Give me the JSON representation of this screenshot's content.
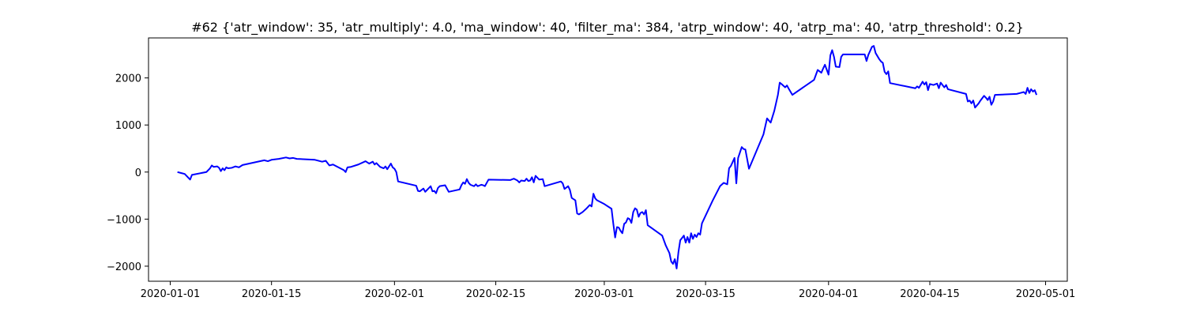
{
  "chart_data": {
    "type": "line",
    "title": "#62 {'atr_window': 35, 'atr_multiply': 4.0, 'ma_window': 40, 'filter_ma': 384, 'atrp_window': 40, 'atrp_ma': 40, 'atrp_threshold': 0.2}",
    "xlabel": "",
    "ylabel": "",
    "xlim": [
      "2019-12-29",
      "2020-05-04"
    ],
    "ylim": [
      -2320,
      2850
    ],
    "grid": false,
    "x_ticks": [
      "2020-01-01",
      "2020-01-15",
      "2020-02-01",
      "2020-02-15",
      "2020-03-01",
      "2020-03-15",
      "2020-04-01",
      "2020-04-15",
      "2020-05-01"
    ],
    "y_ticks": [
      -2000,
      -1000,
      0,
      1000,
      2000
    ],
    "series": [
      {
        "color": "#0000ff",
        "points": [
          [
            "2020-01-02",
            0
          ],
          [
            "2020-01-02 12:00",
            -20
          ],
          [
            "2020-01-03",
            -40
          ],
          [
            "2020-01-03 12:00",
            -120
          ],
          [
            "2020-01-03 18:00",
            -160
          ],
          [
            "2020-01-04",
            -60
          ],
          [
            "2020-01-06",
            0
          ],
          [
            "2020-01-06 12:00",
            80
          ],
          [
            "2020-01-06 18:00",
            140
          ],
          [
            "2020-01-07",
            110
          ],
          [
            "2020-01-07 12:00",
            120
          ],
          [
            "2020-01-07 18:00",
            90
          ],
          [
            "2020-01-08",
            20
          ],
          [
            "2020-01-08 06:00",
            80
          ],
          [
            "2020-01-08 12:00",
            40
          ],
          [
            "2020-01-08 18:00",
            100
          ],
          [
            "2020-01-09",
            80
          ],
          [
            "2020-01-09 12:00",
            90
          ],
          [
            "2020-01-10",
            120
          ],
          [
            "2020-01-10 12:00",
            100
          ],
          [
            "2020-01-11",
            150
          ],
          [
            "2020-01-14",
            250
          ],
          [
            "2020-01-14 12:00",
            230
          ],
          [
            "2020-01-15",
            260
          ],
          [
            "2020-01-16",
            280
          ],
          [
            "2020-01-17",
            310
          ],
          [
            "2020-01-17 12:00",
            290
          ],
          [
            "2020-01-18",
            300
          ],
          [
            "2020-01-18 12:00",
            280
          ],
          [
            "2020-01-21",
            260
          ],
          [
            "2020-01-22",
            220
          ],
          [
            "2020-01-22 12:00",
            240
          ],
          [
            "2020-01-23",
            140
          ],
          [
            "2020-01-23 12:00",
            160
          ],
          [
            "2020-01-24",
            120
          ],
          [
            "2020-01-24 12:00",
            80
          ],
          [
            "2020-01-25",
            40
          ],
          [
            "2020-01-25 06:00",
            0
          ],
          [
            "2020-01-25 12:00",
            100
          ],
          [
            "2020-01-26",
            110
          ],
          [
            "2020-01-27",
            160
          ],
          [
            "2020-01-28",
            230
          ],
          [
            "2020-01-28 12:00",
            180
          ],
          [
            "2020-01-29",
            220
          ],
          [
            "2020-01-29 06:00",
            160
          ],
          [
            "2020-01-29 12:00",
            190
          ],
          [
            "2020-01-30",
            110
          ],
          [
            "2020-01-30 12:00",
            80
          ],
          [
            "2020-01-30 18:00",
            120
          ],
          [
            "2020-01-31",
            60
          ],
          [
            "2020-01-31 12:00",
            180
          ],
          [
            "2020-01-31 18:00",
            100
          ],
          [
            "2020-02-01",
            70
          ],
          [
            "2020-02-01 06:00",
            0
          ],
          [
            "2020-02-01 12:00",
            -200
          ],
          [
            "2020-02-04",
            -290
          ],
          [
            "2020-02-04 06:00",
            -400
          ],
          [
            "2020-02-04 12:00",
            -410
          ],
          [
            "2020-02-05",
            -350
          ],
          [
            "2020-02-05 06:00",
            -420
          ],
          [
            "2020-02-05 12:00",
            -380
          ],
          [
            "2020-02-06",
            -300
          ],
          [
            "2020-02-06 06:00",
            -410
          ],
          [
            "2020-02-06 12:00",
            -400
          ],
          [
            "2020-02-06 18:00",
            -450
          ],
          [
            "2020-02-07",
            -340
          ],
          [
            "2020-02-07 06:00",
            -300
          ],
          [
            "2020-02-08",
            -280
          ],
          [
            "2020-02-08 12:00",
            -420
          ],
          [
            "2020-02-10",
            -370
          ],
          [
            "2020-02-10 06:00",
            -280
          ],
          [
            "2020-02-10 12:00",
            -220
          ],
          [
            "2020-02-10 18:00",
            -250
          ],
          [
            "2020-02-11",
            -150
          ],
          [
            "2020-02-11 06:00",
            -230
          ],
          [
            "2020-02-11 12:00",
            -270
          ],
          [
            "2020-02-12",
            -300
          ],
          [
            "2020-02-12 06:00",
            -260
          ],
          [
            "2020-02-12 12:00",
            -300
          ],
          [
            "2020-02-13",
            -270
          ],
          [
            "2020-02-13 06:00",
            -280
          ],
          [
            "2020-02-13 12:00",
            -300
          ],
          [
            "2020-02-14",
            -160
          ],
          [
            "2020-02-17",
            -170
          ],
          [
            "2020-02-17 12:00",
            -140
          ],
          [
            "2020-02-18",
            -180
          ],
          [
            "2020-02-18 06:00",
            -220
          ],
          [
            "2020-02-18 12:00",
            -180
          ],
          [
            "2020-02-19",
            -190
          ],
          [
            "2020-02-19 06:00",
            -140
          ],
          [
            "2020-02-19 12:00",
            -190
          ],
          [
            "2020-02-19 18:00",
            -180
          ],
          [
            "2020-02-20",
            -110
          ],
          [
            "2020-02-20 06:00",
            -220
          ],
          [
            "2020-02-20 12:00",
            -80
          ],
          [
            "2020-02-21",
            -160
          ],
          [
            "2020-02-21 12:00",
            -150
          ],
          [
            "2020-02-21 18:00",
            -300
          ],
          [
            "2020-02-24",
            -200
          ],
          [
            "2020-02-24 06:00",
            -240
          ],
          [
            "2020-02-24 12:00",
            -360
          ],
          [
            "2020-02-25",
            -300
          ],
          [
            "2020-02-25 06:00",
            -380
          ],
          [
            "2020-02-25 12:00",
            -550
          ],
          [
            "2020-02-26",
            -600
          ],
          [
            "2020-02-26 06:00",
            -880
          ],
          [
            "2020-02-26 12:00",
            -900
          ],
          [
            "2020-02-27",
            -850
          ],
          [
            "2020-02-27 12:00",
            -780
          ],
          [
            "2020-02-28",
            -700
          ],
          [
            "2020-02-28 06:00",
            -730
          ],
          [
            "2020-02-28 12:00",
            -460
          ],
          [
            "2020-02-28 18:00",
            -560
          ],
          [
            "2020-02-29",
            -600
          ],
          [
            "2020-03-01",
            -680
          ],
          [
            "2020-03-02",
            -780
          ],
          [
            "2020-03-02 06:00",
            -1100
          ],
          [
            "2020-03-02 12:00",
            -1390
          ],
          [
            "2020-03-02 18:00",
            -1170
          ],
          [
            "2020-03-03",
            -1180
          ],
          [
            "2020-03-03 06:00",
            -1250
          ],
          [
            "2020-03-03 12:00",
            -1300
          ],
          [
            "2020-03-03 18:00",
            -1100
          ],
          [
            "2020-03-04",
            -1070
          ],
          [
            "2020-03-04 06:00",
            -980
          ],
          [
            "2020-03-04 12:00",
            -1000
          ],
          [
            "2020-03-04 18:00",
            -1080
          ],
          [
            "2020-03-05",
            -850
          ],
          [
            "2020-03-05 06:00",
            -770
          ],
          [
            "2020-03-05 12:00",
            -800
          ],
          [
            "2020-03-05 18:00",
            -950
          ],
          [
            "2020-03-06",
            -870
          ],
          [
            "2020-03-06 06:00",
            -850
          ],
          [
            "2020-03-06 12:00",
            -900
          ],
          [
            "2020-03-06 18:00",
            -810
          ],
          [
            "2020-03-07",
            -1130
          ],
          [
            "2020-03-09",
            -1350
          ],
          [
            "2020-03-09 12:00",
            -1560
          ],
          [
            "2020-03-10",
            -1720
          ],
          [
            "2020-03-10 06:00",
            -1900
          ],
          [
            "2020-03-10 12:00",
            -1950
          ],
          [
            "2020-03-10 18:00",
            -1850
          ],
          [
            "2020-03-11",
            -2050
          ],
          [
            "2020-03-11 06:00",
            -1700
          ],
          [
            "2020-03-11 12:00",
            -1450
          ],
          [
            "2020-03-12",
            -1350
          ],
          [
            "2020-03-12 06:00",
            -1500
          ],
          [
            "2020-03-12 12:00",
            -1380
          ],
          [
            "2020-03-12 18:00",
            -1500
          ],
          [
            "2020-03-13",
            -1300
          ],
          [
            "2020-03-13 06:00",
            -1420
          ],
          [
            "2020-03-13 12:00",
            -1330
          ],
          [
            "2020-03-13 18:00",
            -1380
          ],
          [
            "2020-03-14",
            -1300
          ],
          [
            "2020-03-14 06:00",
            -1330
          ],
          [
            "2020-03-14 12:00",
            -1090
          ],
          [
            "2020-03-16",
            -600
          ],
          [
            "2020-03-17",
            -300
          ],
          [
            "2020-03-17 12:00",
            -230
          ],
          [
            "2020-03-18",
            -260
          ],
          [
            "2020-03-18 06:00",
            80
          ],
          [
            "2020-03-18 12:00",
            130
          ],
          [
            "2020-03-19",
            300
          ],
          [
            "2020-03-19 06:00",
            -240
          ],
          [
            "2020-03-19 12:00",
            300
          ],
          [
            "2020-03-20",
            530
          ],
          [
            "2020-03-20 06:00",
            490
          ],
          [
            "2020-03-20 12:00",
            480
          ],
          [
            "2020-03-21",
            70
          ],
          [
            "2020-03-23",
            800
          ],
          [
            "2020-03-23 12:00",
            1140
          ],
          [
            "2020-03-24",
            1050
          ],
          [
            "2020-03-24 12:00",
            1300
          ],
          [
            "2020-03-25",
            1640
          ],
          [
            "2020-03-25 06:00",
            1900
          ],
          [
            "2020-03-25 12:00",
            1870
          ],
          [
            "2020-03-26",
            1800
          ],
          [
            "2020-03-26 06:00",
            1840
          ],
          [
            "2020-03-26 12:00",
            1770
          ],
          [
            "2020-03-27",
            1640
          ],
          [
            "2020-03-30",
            1960
          ],
          [
            "2020-03-30 12:00",
            2170
          ],
          [
            "2020-03-31",
            2110
          ],
          [
            "2020-03-31 06:00",
            2200
          ],
          [
            "2020-03-31 12:00",
            2280
          ],
          [
            "2020-04-01",
            2070
          ],
          [
            "2020-04-01 06:00",
            2480
          ],
          [
            "2020-04-01 12:00",
            2590
          ],
          [
            "2020-04-01 18:00",
            2450
          ],
          [
            "2020-04-02",
            2240
          ],
          [
            "2020-04-02 12:00",
            2230
          ],
          [
            "2020-04-02 18:00",
            2450
          ],
          [
            "2020-04-03",
            2500
          ],
          [
            "2020-04-06",
            2500
          ],
          [
            "2020-04-06 06:00",
            2360
          ],
          [
            "2020-04-06 12:00",
            2490
          ],
          [
            "2020-04-07",
            2660
          ],
          [
            "2020-04-07 06:00",
            2680
          ],
          [
            "2020-04-07 12:00",
            2530
          ],
          [
            "2020-04-08",
            2400
          ],
          [
            "2020-04-08 06:00",
            2350
          ],
          [
            "2020-04-08 12:00",
            2320
          ],
          [
            "2020-04-08 18:00",
            2130
          ],
          [
            "2020-04-09",
            2080
          ],
          [
            "2020-04-09 06:00",
            2140
          ],
          [
            "2020-04-09 12:00",
            1890
          ],
          [
            "2020-04-13",
            1780
          ],
          [
            "2020-04-13 06:00",
            1820
          ],
          [
            "2020-04-13 12:00",
            1790
          ],
          [
            "2020-04-14",
            1920
          ],
          [
            "2020-04-14 06:00",
            1860
          ],
          [
            "2020-04-14 12:00",
            1910
          ],
          [
            "2020-04-14 18:00",
            1740
          ],
          [
            "2020-04-15",
            1870
          ],
          [
            "2020-04-15 12:00",
            1850
          ],
          [
            "2020-04-16",
            1880
          ],
          [
            "2020-04-16 06:00",
            1780
          ],
          [
            "2020-04-16 12:00",
            1900
          ],
          [
            "2020-04-17",
            1800
          ],
          [
            "2020-04-17 06:00",
            1850
          ],
          [
            "2020-04-17 12:00",
            1760
          ],
          [
            "2020-04-20",
            1660
          ],
          [
            "2020-04-20 06:00",
            1500
          ],
          [
            "2020-04-20 12:00",
            1520
          ],
          [
            "2020-04-20 18:00",
            1460
          ],
          [
            "2020-04-21",
            1520
          ],
          [
            "2020-04-21 06:00",
            1370
          ],
          [
            "2020-04-21 18:00",
            1460
          ],
          [
            "2020-04-22",
            1520
          ],
          [
            "2020-04-22 12:00",
            1620
          ],
          [
            "2020-04-22 18:00",
            1580
          ],
          [
            "2020-04-23",
            1530
          ],
          [
            "2020-04-23 06:00",
            1600
          ],
          [
            "2020-04-23 12:00",
            1430
          ],
          [
            "2020-04-23 18:00",
            1500
          ],
          [
            "2020-04-24",
            1640
          ],
          [
            "2020-04-27",
            1660
          ],
          [
            "2020-04-27 12:00",
            1680
          ],
          [
            "2020-04-28",
            1700
          ],
          [
            "2020-04-28 06:00",
            1660
          ],
          [
            "2020-04-28 12:00",
            1790
          ],
          [
            "2020-04-28 18:00",
            1680
          ],
          [
            "2020-04-29",
            1760
          ],
          [
            "2020-04-29 06:00",
            1710
          ],
          [
            "2020-04-29 12:00",
            1740
          ],
          [
            "2020-04-29 18:00",
            1640
          ]
        ]
      }
    ]
  }
}
